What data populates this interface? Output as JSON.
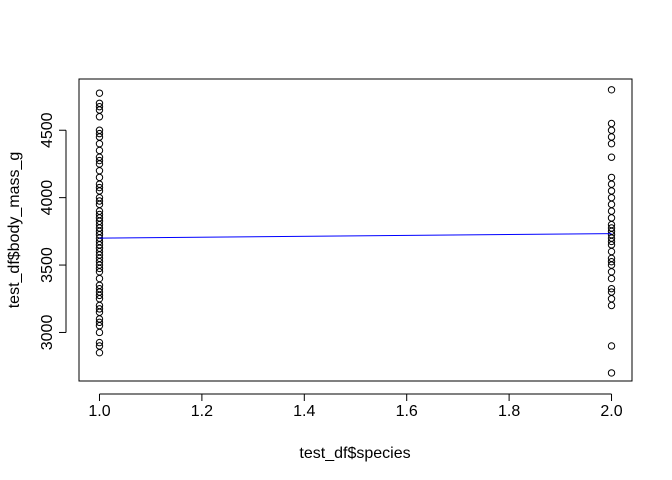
{
  "chart_data": {
    "type": "scatter",
    "title": "",
    "xlabel": "test_df$species",
    "ylabel": "test_df$body_mass_g",
    "xlim": [
      0.96,
      2.04
    ],
    "ylim": [
      2640,
      4880
    ],
    "x_ticks": [
      1.0,
      1.2,
      1.4,
      1.6,
      1.8,
      2.0
    ],
    "x_tick_labels": [
      "1.0",
      "1.2",
      "1.4",
      "1.6",
      "1.8",
      "2.0"
    ],
    "y_ticks": [
      3000,
      3500,
      4000,
      4500
    ],
    "y_tick_labels": [
      "3000",
      "3500",
      "4000",
      "4500"
    ],
    "grid": false,
    "point_color": "#000000",
    "series": [
      {
        "type": "scatter",
        "marker": "open-circle",
        "points": [
          {
            "x": 1,
            "y": 2850
          },
          {
            "x": 1,
            "y": 2900
          },
          {
            "x": 1,
            "y": 2925
          },
          {
            "x": 1,
            "y": 3000
          },
          {
            "x": 1,
            "y": 3050
          },
          {
            "x": 1,
            "y": 3075
          },
          {
            "x": 1,
            "y": 3100
          },
          {
            "x": 1,
            "y": 3150
          },
          {
            "x": 1,
            "y": 3175
          },
          {
            "x": 1,
            "y": 3200
          },
          {
            "x": 1,
            "y": 3250
          },
          {
            "x": 1,
            "y": 3275
          },
          {
            "x": 1,
            "y": 3300
          },
          {
            "x": 1,
            "y": 3325
          },
          {
            "x": 1,
            "y": 3350
          },
          {
            "x": 1,
            "y": 3400
          },
          {
            "x": 1,
            "y": 3450
          },
          {
            "x": 1,
            "y": 3475
          },
          {
            "x": 1,
            "y": 3500
          },
          {
            "x": 1,
            "y": 3525
          },
          {
            "x": 1,
            "y": 3550
          },
          {
            "x": 1,
            "y": 3575
          },
          {
            "x": 1,
            "y": 3600
          },
          {
            "x": 1,
            "y": 3625
          },
          {
            "x": 1,
            "y": 3650
          },
          {
            "x": 1,
            "y": 3675
          },
          {
            "x": 1,
            "y": 3700
          },
          {
            "x": 1,
            "y": 3725
          },
          {
            "x": 1,
            "y": 3750
          },
          {
            "x": 1,
            "y": 3775
          },
          {
            "x": 1,
            "y": 3800
          },
          {
            "x": 1,
            "y": 3825
          },
          {
            "x": 1,
            "y": 3850
          },
          {
            "x": 1,
            "y": 3875
          },
          {
            "x": 1,
            "y": 3900
          },
          {
            "x": 1,
            "y": 3950
          },
          {
            "x": 1,
            "y": 3975
          },
          {
            "x": 1,
            "y": 4000
          },
          {
            "x": 1,
            "y": 4050
          },
          {
            "x": 1,
            "y": 4075
          },
          {
            "x": 1,
            "y": 4100
          },
          {
            "x": 1,
            "y": 4150
          },
          {
            "x": 1,
            "y": 4200
          },
          {
            "x": 1,
            "y": 4250
          },
          {
            "x": 1,
            "y": 4275
          },
          {
            "x": 1,
            "y": 4300
          },
          {
            "x": 1,
            "y": 4350
          },
          {
            "x": 1,
            "y": 4400
          },
          {
            "x": 1,
            "y": 4450
          },
          {
            "x": 1,
            "y": 4475
          },
          {
            "x": 1,
            "y": 4500
          },
          {
            "x": 1,
            "y": 4600
          },
          {
            "x": 1,
            "y": 4650
          },
          {
            "x": 1,
            "y": 4675
          },
          {
            "x": 1,
            "y": 4700
          },
          {
            "x": 1,
            "y": 4775
          },
          {
            "x": 2,
            "y": 2700
          },
          {
            "x": 2,
            "y": 2900
          },
          {
            "x": 2,
            "y": 3200
          },
          {
            "x": 2,
            "y": 3250
          },
          {
            "x": 2,
            "y": 3300
          },
          {
            "x": 2,
            "y": 3325
          },
          {
            "x": 2,
            "y": 3400
          },
          {
            "x": 2,
            "y": 3450
          },
          {
            "x": 2,
            "y": 3500
          },
          {
            "x": 2,
            "y": 3525
          },
          {
            "x": 2,
            "y": 3550
          },
          {
            "x": 2,
            "y": 3600
          },
          {
            "x": 2,
            "y": 3650
          },
          {
            "x": 2,
            "y": 3675
          },
          {
            "x": 2,
            "y": 3700
          },
          {
            "x": 2,
            "y": 3725
          },
          {
            "x": 2,
            "y": 3750
          },
          {
            "x": 2,
            "y": 3775
          },
          {
            "x": 2,
            "y": 3800
          },
          {
            "x": 2,
            "y": 3850
          },
          {
            "x": 2,
            "y": 3900
          },
          {
            "x": 2,
            "y": 3950
          },
          {
            "x": 2,
            "y": 4000
          },
          {
            "x": 2,
            "y": 4050
          },
          {
            "x": 2,
            "y": 4100
          },
          {
            "x": 2,
            "y": 4150
          },
          {
            "x": 2,
            "y": 4300
          },
          {
            "x": 2,
            "y": 4400
          },
          {
            "x": 2,
            "y": 4450
          },
          {
            "x": 2,
            "y": 4500
          },
          {
            "x": 2,
            "y": 4550
          },
          {
            "x": 2,
            "y": 4800
          }
        ]
      },
      {
        "type": "line",
        "color": "#0000ff",
        "x": [
          1,
          2
        ],
        "y": [
          3700,
          3733
        ]
      }
    ]
  }
}
